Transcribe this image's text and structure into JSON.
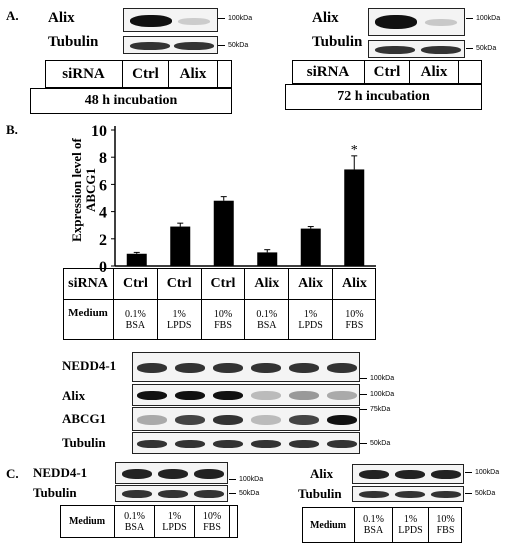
{
  "panelA": {
    "label": "A.",
    "left": {
      "alix_label": "Alix",
      "tubulin_label": "Tubulin",
      "marker_top": "100kDa",
      "marker_bottom": "50kDa",
      "siRNA_label": "siRNA",
      "ctrl_label": "Ctrl",
      "alix_col_label": "Alix",
      "incubation": "48 h incubation"
    },
    "right": {
      "alix_label": "Alix",
      "tubulin_label": "Tubulin",
      "marker_top": "100kDa",
      "marker_bottom": "50kDa",
      "siRNA_label": "siRNA",
      "ctrl_label": "Ctrl",
      "alix_col_label": "Alix",
      "incubation": "72 h incubation"
    }
  },
  "panelB": {
    "label": "B.",
    "chart_data": {
      "type": "bar",
      "ylabel_line1": "Expression level of",
      "ylabel_line2": "ABCG1",
      "ylim": [
        0,
        10
      ],
      "yticks": [
        "0",
        "2",
        "4",
        "6",
        "8",
        "10"
      ],
      "categories": [
        "Ctrl 0.1% BSA",
        "Ctrl 1% LPDS",
        "Ctrl 10% FBS",
        "Alix 0.1% BSA",
        "Alix 1% LPDS",
        "Alix 10% FBS"
      ],
      "values": [
        0.9,
        2.9,
        4.8,
        1.0,
        2.75,
        7.1
      ],
      "errors": [
        0.1,
        0.25,
        0.3,
        0.2,
        0.15,
        1.0
      ],
      "significance": [
        "",
        "",
        "",
        "",
        "",
        "*"
      ],
      "bar_color": "#000000"
    },
    "table": {
      "siRNA_label": "siRNA",
      "medium_label": "Medium",
      "siRNA": [
        "Ctrl",
        "Ctrl",
        "Ctrl",
        "Alix",
        "Alix",
        "Alix"
      ],
      "medium_line1": [
        "0.1%",
        "1%",
        "10%",
        "0.1%",
        "1%",
        "10%"
      ],
      "medium_line2": [
        "BSA",
        "LPDS",
        "FBS",
        "BSA",
        "LPDS",
        "FBS"
      ]
    },
    "blots": {
      "nedd_label": "NEDD4-1",
      "alix_label": "Alix",
      "abcg1_label": "ABCG1",
      "tubulin_label": "Tubulin",
      "marker_nedd": "100kDa",
      "marker_alix": "100kDa",
      "marker_abcg1": "75kDa",
      "marker_tub": "50kDa"
    }
  },
  "panelC": {
    "label": "C.",
    "left": {
      "nedd_label": "NEDD4-1",
      "tubulin_label": "Tubulin",
      "marker_top": "100kDa",
      "marker_bottom": "50kDa",
      "medium_label": "Medium",
      "medium_line1": [
        "0.1%",
        "1%",
        "10%"
      ],
      "medium_line2": [
        "BSA",
        "LPDS",
        "FBS"
      ]
    },
    "right": {
      "alix_label": "Alix",
      "tubulin_label": "Tubulin",
      "marker_top": "100kDa",
      "marker_bottom": "50kDa",
      "medium_label": "Medium",
      "medium_line1": [
        "0.1%",
        "1%",
        "10%"
      ],
      "medium_line2": [
        "BSA",
        "LPDS",
        "FBS"
      ]
    }
  }
}
